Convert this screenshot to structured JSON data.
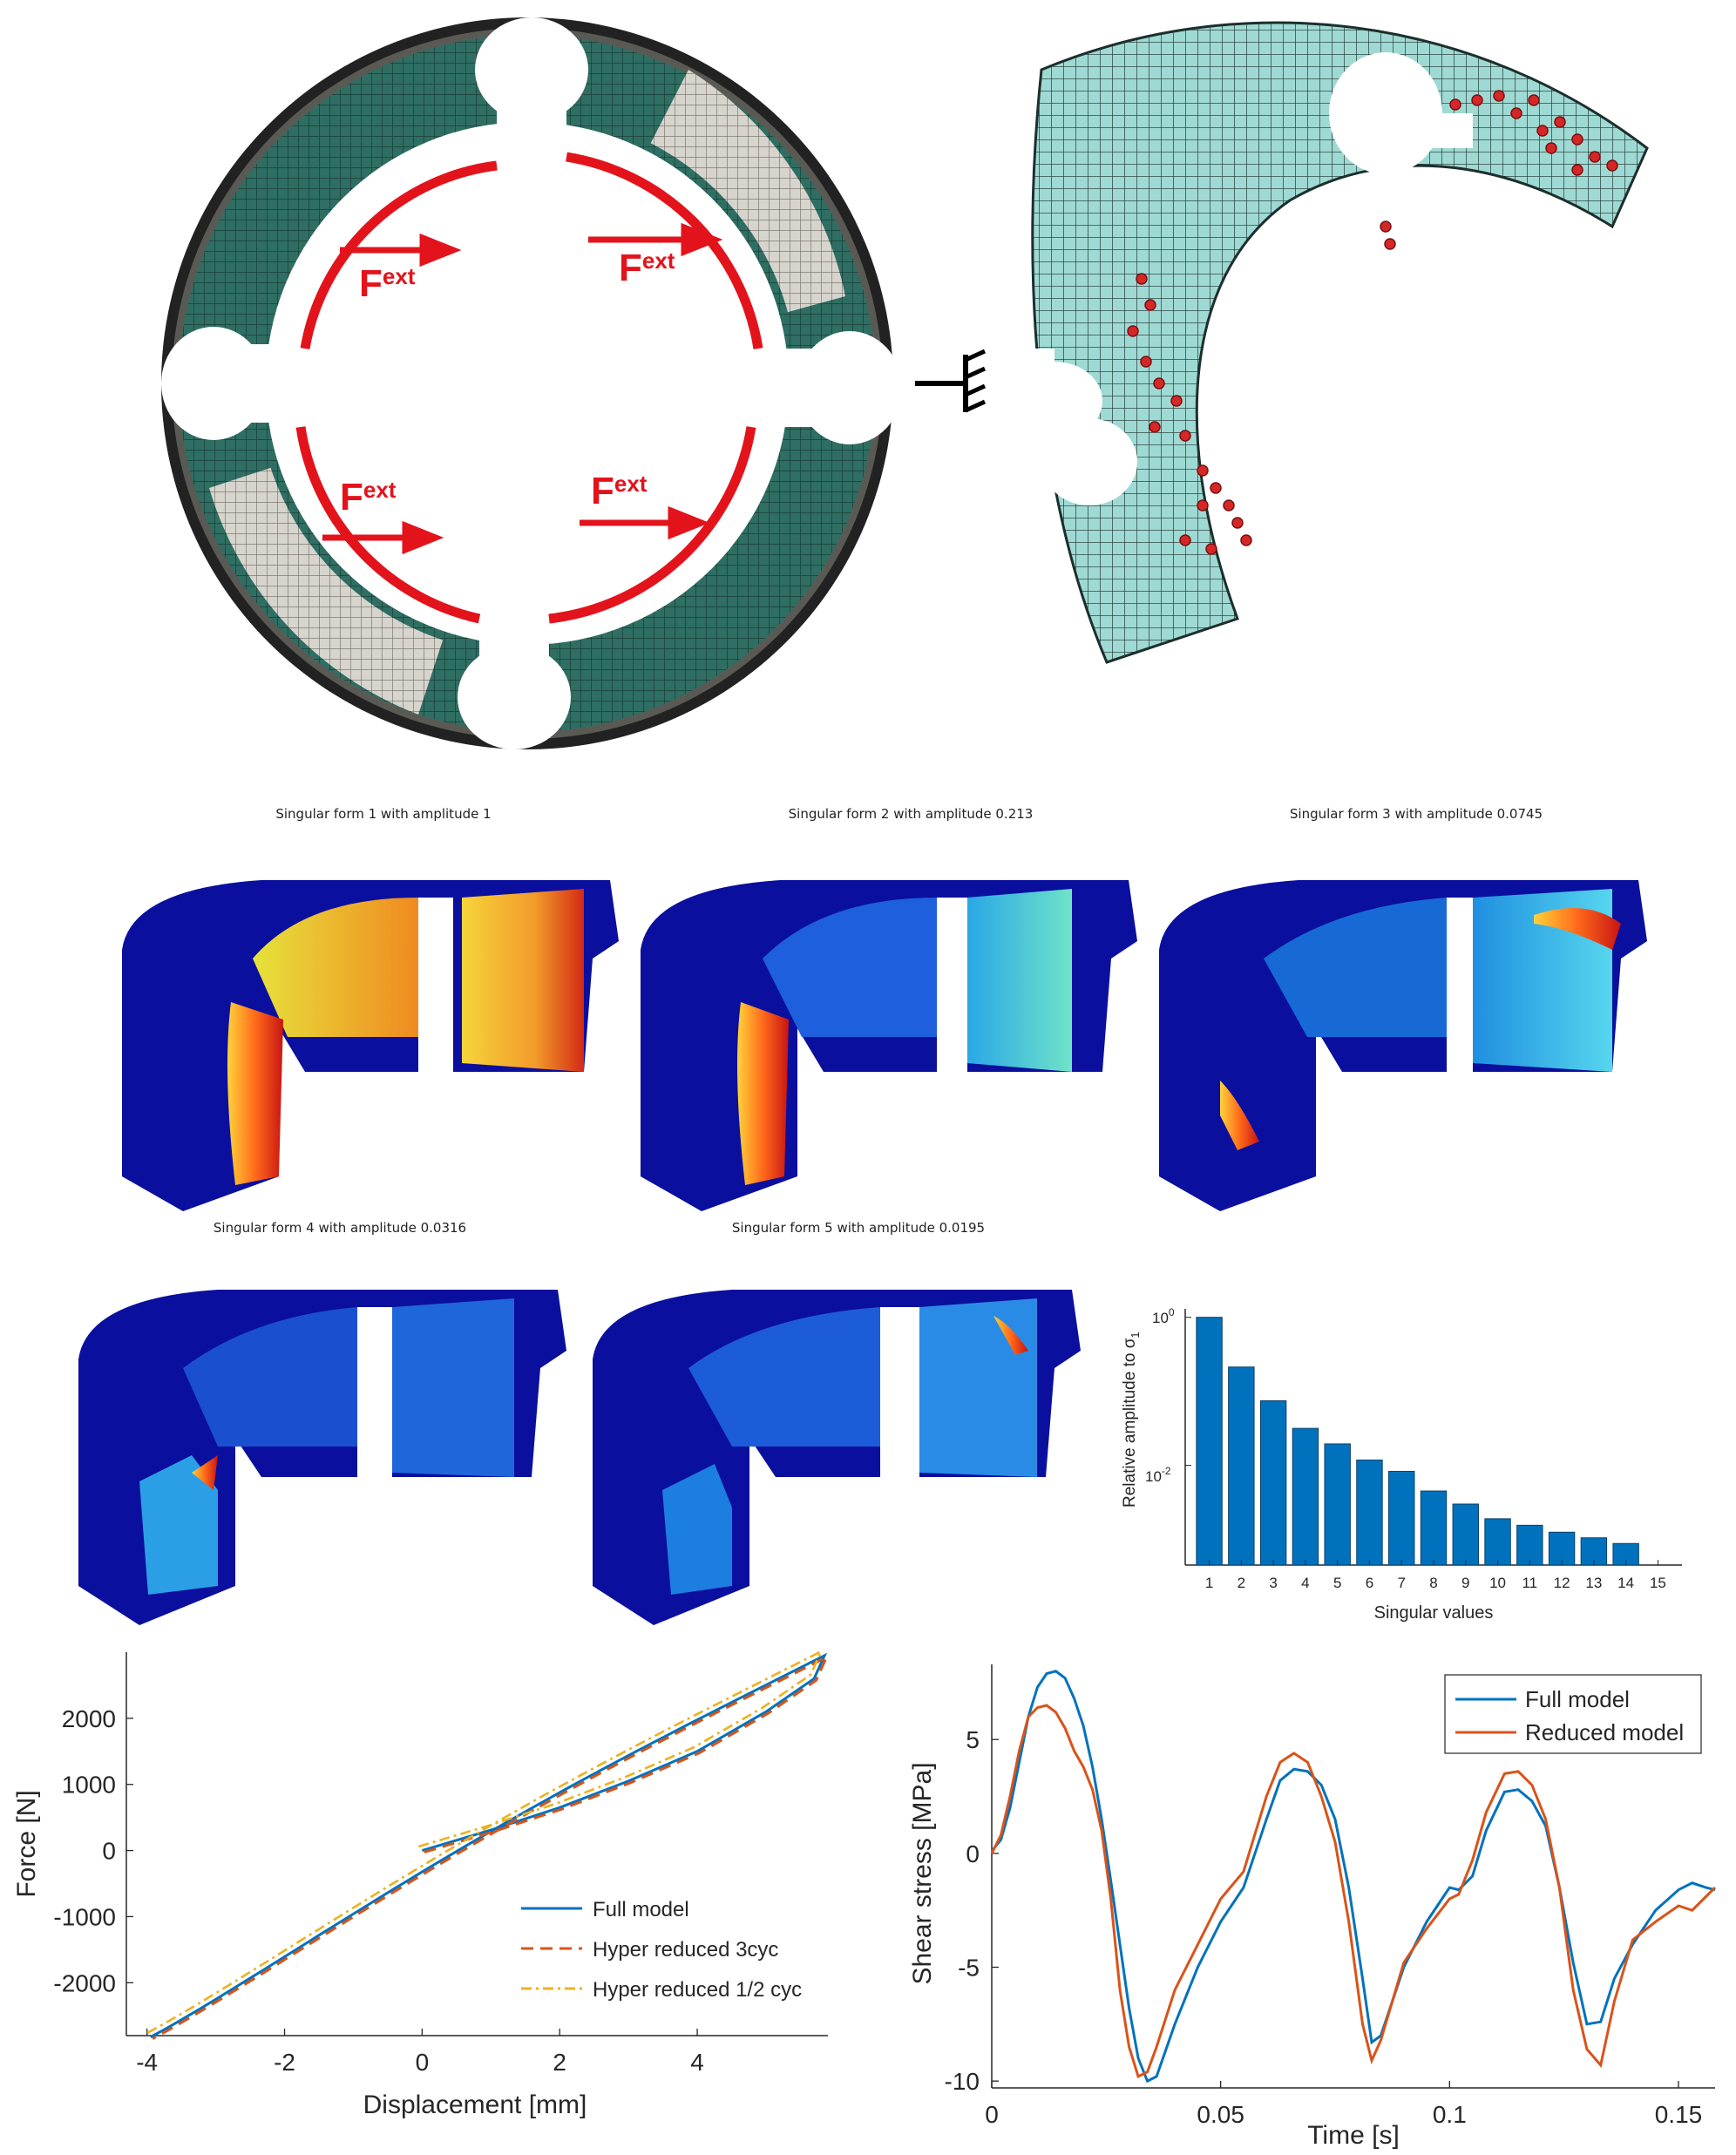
{
  "figure_top": {
    "load_label": "F",
    "load_label_sup": "ext",
    "load_labels": [
      {
        "main": "F",
        "sup": "ext"
      },
      {
        "main": "F",
        "sup": "ext"
      },
      {
        "main": "F",
        "sup": "ext"
      },
      {
        "main": "F",
        "sup": "ext"
      }
    ]
  },
  "singular_forms": [
    {
      "title": "Singular form 1 with amplitude 1"
    },
    {
      "title": "Singular form 2 with amplitude 0.213"
    },
    {
      "title": "Singular form 3 with amplitude 0.0745"
    },
    {
      "title": "Singular form 4 with amplitude 0.0316"
    },
    {
      "title": "Singular form 5 with amplitude 0.0195"
    }
  ],
  "colors": {
    "mesh_green": "#2f6e62",
    "mesh_grey": "#d6d4cc",
    "mesh_cyan": "#9fd9d3",
    "load_red": "#e3131b",
    "bar_blue": "#0072bd",
    "line_blue": "#0072bd",
    "line_orange": "#d95319",
    "line_yellow": "#edb120"
  },
  "chart_data": [
    {
      "type": "bar",
      "xlabel": "Singular values",
      "ylabel": "Relative amplitude to σ",
      "ylabel_sub": "1",
      "yscale": "log",
      "ytick_labels": [
        {
          "base": "10",
          "exp": "0"
        },
        {
          "base": "10",
          "exp": "-2"
        }
      ],
      "categories": [
        "1",
        "2",
        "3",
        "4",
        "5",
        "6",
        "7",
        "8",
        "9",
        "10",
        "11",
        "12",
        "13",
        "14",
        "15"
      ],
      "values": [
        1,
        0.213,
        0.0745,
        0.0316,
        0.0195,
        0.0118,
        0.0083,
        0.0045,
        0.003,
        0.0019,
        0.00155,
        0.00125,
        0.00105,
        0.00088,
        0.0
      ],
      "ylim": [
        0.00045,
        1.3
      ]
    },
    {
      "type": "line",
      "xlabel": "Displacement [mm]",
      "ylabel": "Force [N]",
      "xlim": [
        -4.3,
        5.9
      ],
      "ylim": [
        -2800,
        3000
      ],
      "xticks": [
        "-4",
        "-2",
        "0",
        "2",
        "4"
      ],
      "yticks": [
        "2000",
        "1000",
        "0",
        "-1000",
        "-2000"
      ],
      "legend_position": "bottom-right",
      "series": [
        {
          "name": "Full model",
          "style": "solid",
          "color": "#0072bd"
        },
        {
          "name": "Hyper reduced 3cyc",
          "style": "dashed",
          "color": "#d95319"
        },
        {
          "name": "Hyper reduced 1/2 cyc",
          "style": "dashdot",
          "color": "#edb120"
        }
      ]
    },
    {
      "type": "line",
      "xlabel": "Time [s]",
      "ylabel": "Shear stress [MPa]",
      "xlim": [
        0,
        0.158
      ],
      "ylim": [
        -10.3,
        8.3
      ],
      "xticks": [
        "0",
        "0.05",
        "0.1",
        "0.15"
      ],
      "yticks": [
        "5",
        "0",
        "-5",
        "-10"
      ],
      "legend_position": "top-right",
      "series": [
        {
          "name": "Full model",
          "color": "#0072bd",
          "x": [
            0,
            0.002,
            0.004,
            0.006,
            0.008,
            0.01,
            0.012,
            0.014,
            0.016,
            0.018,
            0.02,
            0.022,
            0.024,
            0.026,
            0.028,
            0.03,
            0.032,
            0.034,
            0.036,
            0.04,
            0.045,
            0.05,
            0.055,
            0.06,
            0.063,
            0.066,
            0.069,
            0.072,
            0.075,
            0.078,
            0.081,
            0.083,
            0.085,
            0.09,
            0.095,
            0.1,
            0.102,
            0.105,
            0.108,
            0.112,
            0.115,
            0.118,
            0.121,
            0.124,
            0.127,
            0.13,
            0.133,
            0.136,
            0.14,
            0.145,
            0.15,
            0.153,
            0.156,
            0.158
          ],
          "y": [
            0.1,
            0.6,
            2.0,
            4.0,
            6.0,
            7.3,
            7.9,
            8.0,
            7.7,
            6.8,
            5.6,
            3.8,
            1.5,
            -1.2,
            -4.0,
            -6.8,
            -9.0,
            -10.0,
            -9.8,
            -7.5,
            -5.0,
            -3.0,
            -1.5,
            1.5,
            3.2,
            3.7,
            3.6,
            3.0,
            1.5,
            -1.5,
            -5.5,
            -8.3,
            -8.0,
            -5.0,
            -3.0,
            -1.5,
            -1.6,
            -1.0,
            1.0,
            2.7,
            2.8,
            2.3,
            1.2,
            -1.5,
            -4.8,
            -7.5,
            -7.4,
            -5.5,
            -4.0,
            -2.5,
            -1.6,
            -1.3,
            -1.5,
            -1.6
          ]
        },
        {
          "name": "Reduced model",
          "color": "#d95319",
          "x": [
            0,
            0.002,
            0.004,
            0.006,
            0.008,
            0.01,
            0.012,
            0.014,
            0.016,
            0.018,
            0.02,
            0.022,
            0.024,
            0.026,
            0.028,
            0.03,
            0.032,
            0.034,
            0.036,
            0.04,
            0.045,
            0.05,
            0.055,
            0.06,
            0.063,
            0.066,
            0.069,
            0.072,
            0.075,
            0.078,
            0.081,
            0.083,
            0.085,
            0.09,
            0.095,
            0.1,
            0.102,
            0.105,
            0.108,
            0.112,
            0.115,
            0.118,
            0.121,
            0.124,
            0.127,
            0.13,
            0.133,
            0.136,
            0.14,
            0.145,
            0.15,
            0.153,
            0.156,
            0.158
          ],
          "y": [
            0.0,
            0.8,
            2.5,
            4.5,
            6.0,
            6.4,
            6.5,
            6.2,
            5.5,
            4.5,
            3.8,
            2.8,
            1.0,
            -2.0,
            -6.0,
            -8.5,
            -9.8,
            -9.6,
            -8.5,
            -6.0,
            -4.0,
            -2.0,
            -0.8,
            2.5,
            4.0,
            4.4,
            4.0,
            2.5,
            0.5,
            -3.0,
            -7.5,
            -9.1,
            -8.2,
            -4.8,
            -3.3,
            -2.0,
            -1.8,
            -0.3,
            1.8,
            3.5,
            3.6,
            3.0,
            1.5,
            -1.5,
            -6.0,
            -8.6,
            -9.3,
            -6.5,
            -3.8,
            -3.0,
            -2.3,
            -2.5,
            -1.9,
            -1.5
          ]
        }
      ]
    }
  ]
}
